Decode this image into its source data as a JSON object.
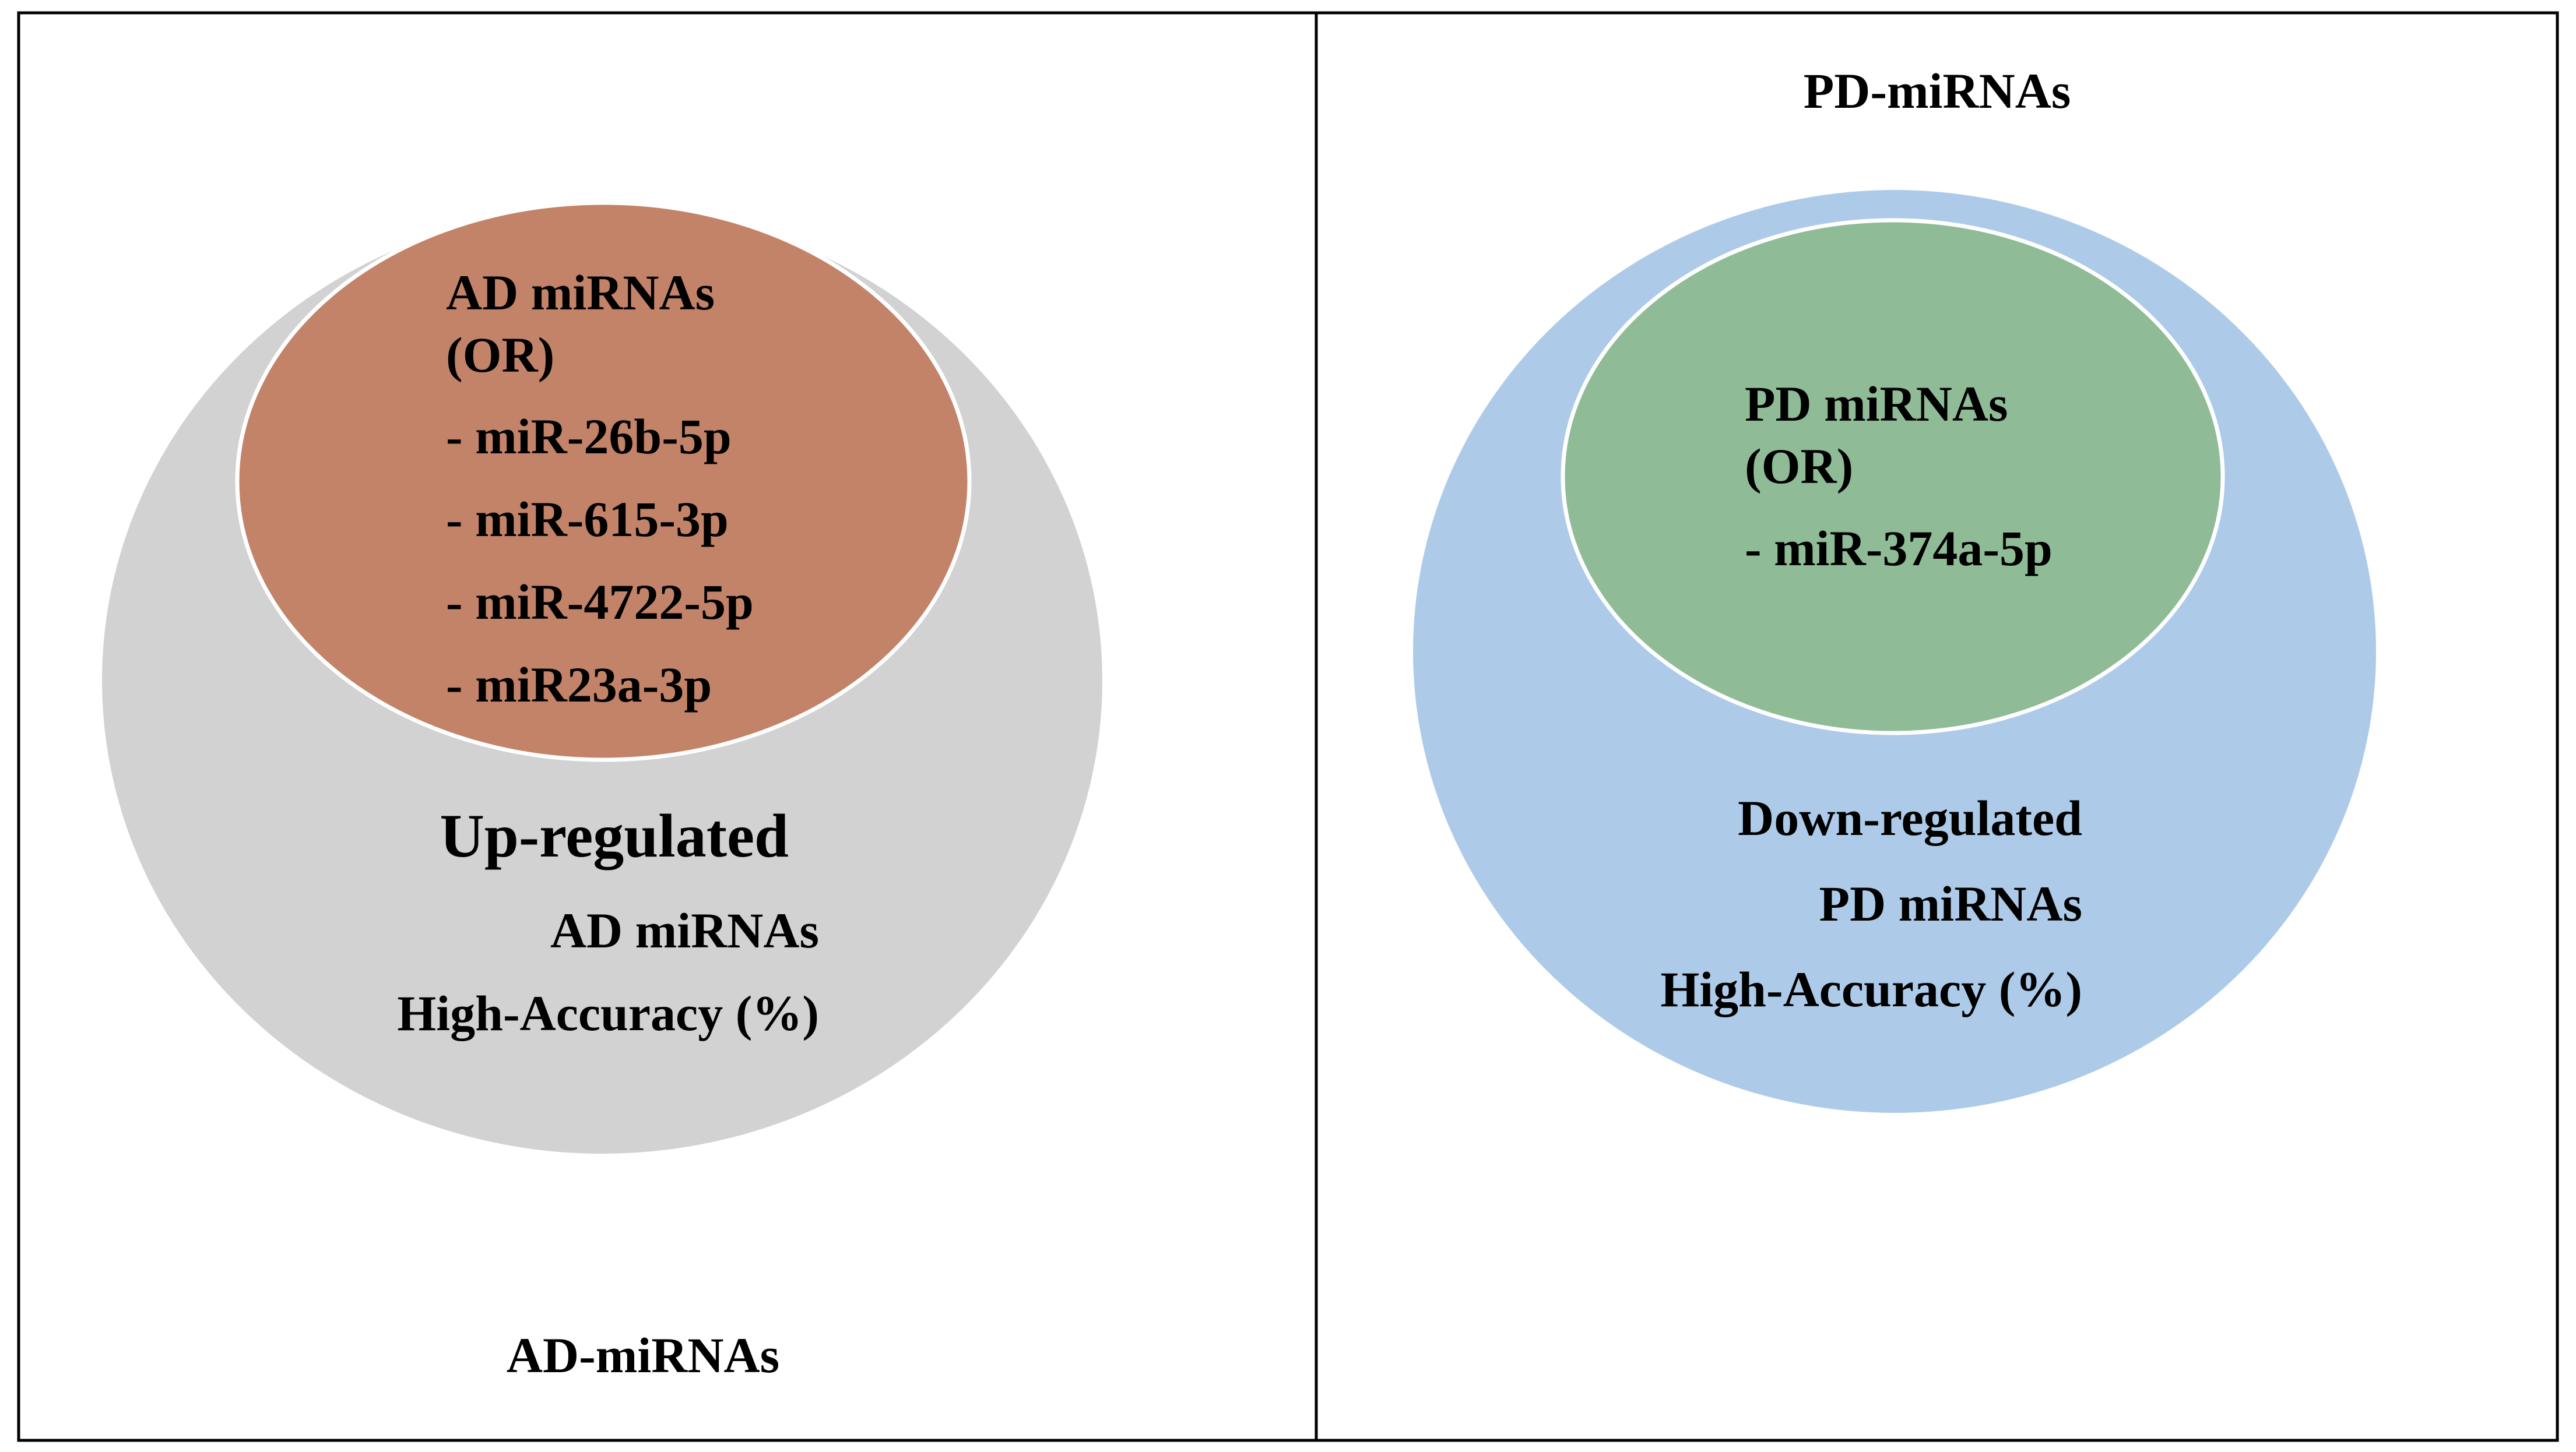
{
  "left_panel": {
    "footer_label": "AD-miRNAs",
    "outer_circle": {
      "fill": "#d2d2d2",
      "lines": [
        "Up-regulated",
        "AD miRNAs",
        "High-Accuracy (%)"
      ]
    },
    "inner_circle": {
      "fill": "#c38368",
      "title_lines": [
        "AD miRNAs",
        "(OR)"
      ],
      "items": [
        "- miR-26b-5p",
        "- miR-615-3p",
        "- miR-4722-5p",
        "- miR23a-3p"
      ]
    }
  },
  "right_panel": {
    "header_label": "PD-miRNAs",
    "outer_circle": {
      "fill": "#adcbe9",
      "lines": [
        "Down-regulated",
        "PD miRNAs",
        "High-Accuracy (%)"
      ]
    },
    "inner_circle": {
      "fill": "#8fbc97",
      "title_lines": [
        "PD miRNAs",
        "(OR)"
      ],
      "items": [
        "- miR-374a-5p"
      ]
    }
  },
  "colors": {
    "border": "#000000",
    "inner_stroke": "#ffffff",
    "background": "#ffffff"
  }
}
